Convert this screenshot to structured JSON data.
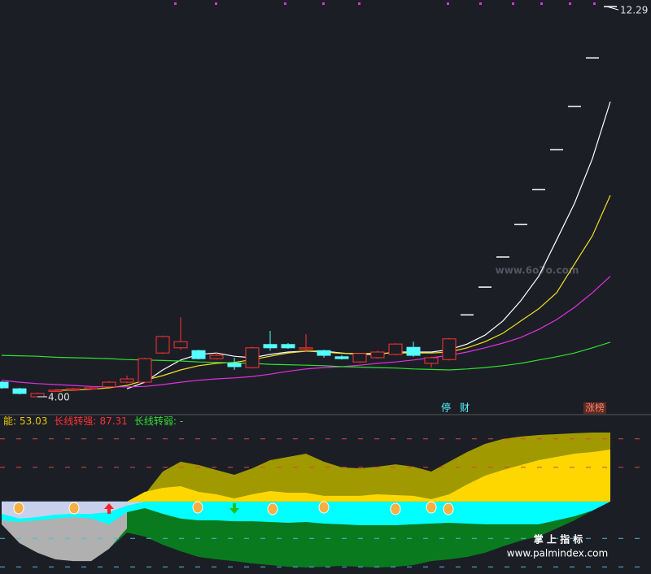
{
  "chart_data": [
    {
      "type": "candlestick",
      "ylim": [
        3.62,
        12.43
      ],
      "open": [
        4.31,
        4.17,
        4.0,
        4.12,
        4.15,
        4.17,
        4.21,
        4.31,
        4.31,
        4.93,
        5.04,
        4.98,
        4.81,
        4.71,
        4.62,
        5.11,
        5.11,
        5.02,
        4.98,
        4.85,
        4.74,
        4.83,
        4.9,
        5.05,
        4.71,
        4.79,
        5.74,
        6.33,
        6.97,
        7.66,
        8.4,
        9.25,
        10.17,
        11.2,
        12.29
      ],
      "close": [
        4.19,
        4.07,
        4.07,
        4.14,
        4.17,
        4.19,
        4.31,
        4.38,
        4.81,
        5.28,
        5.17,
        4.81,
        4.88,
        4.64,
        5.04,
        5.04,
        5.04,
        5.04,
        4.88,
        4.81,
        4.92,
        4.95,
        5.12,
        4.88,
        4.83,
        5.23,
        5.74,
        6.33,
        6.97,
        7.66,
        8.4,
        9.25,
        10.17,
        11.2,
        12.29
      ],
      "high": [
        4.33,
        4.19,
        4.09,
        4.16,
        4.19,
        4.21,
        4.33,
        4.45,
        4.83,
        5.3,
        5.69,
        5.0,
        4.95,
        4.83,
        5.06,
        5.4,
        5.14,
        5.33,
        5.0,
        4.88,
        4.93,
        4.98,
        5.14,
        5.17,
        4.85,
        5.25,
        5.74,
        6.33,
        6.97,
        7.66,
        8.4,
        9.25,
        10.17,
        11.2,
        12.29
      ],
      "low": [
        4.17,
        4.05,
        4.0,
        4.1,
        4.13,
        4.15,
        4.19,
        4.29,
        4.29,
        4.91,
        5.0,
        4.79,
        4.79,
        4.57,
        4.6,
        4.98,
        5.02,
        4.95,
        4.83,
        4.79,
        4.72,
        4.81,
        4.88,
        4.85,
        4.62,
        4.77,
        5.74,
        6.33,
        6.97,
        7.66,
        8.4,
        9.25,
        10.17,
        11.2,
        12.29
      ],
      "up_color": "#ff3232",
      "down_color": "#54ffff",
      "flat_color": "#ffffff",
      "lines": [
        {
          "color": "#ffffff",
          "values": [
            null,
            null,
            null,
            null,
            null,
            null,
            null,
            4.17,
            4.31,
            4.57,
            4.78,
            4.9,
            4.93,
            4.86,
            4.83,
            4.9,
            4.95,
            4.97,
            4.97,
            4.93,
            4.9,
            4.9,
            4.95,
            4.95,
            4.95,
            5.0,
            5.12,
            5.31,
            5.61,
            6.04,
            6.56,
            7.33,
            8.11,
            9.06,
            10.27
          ]
        },
        {
          "color": "#f0e020",
          "values": [
            null,
            null,
            null,
            4.14,
            4.14,
            4.16,
            4.19,
            4.24,
            4.35,
            4.45,
            4.57,
            4.66,
            4.71,
            4.73,
            4.79,
            4.86,
            4.93,
            4.97,
            4.95,
            4.92,
            4.92,
            4.92,
            4.93,
            4.93,
            4.93,
            4.95,
            5.04,
            5.17,
            5.35,
            5.61,
            5.87,
            6.21,
            6.82,
            7.42,
            8.28
          ]
        },
        {
          "color": "#e030e0",
          "values": [
            4.35,
            4.31,
            4.28,
            4.26,
            4.24,
            4.22,
            4.21,
            4.21,
            4.22,
            4.26,
            4.31,
            4.35,
            4.38,
            4.4,
            4.43,
            4.48,
            4.54,
            4.59,
            4.62,
            4.64,
            4.67,
            4.71,
            4.74,
            4.78,
            4.83,
            4.88,
            4.95,
            5.04,
            5.14,
            5.26,
            5.43,
            5.64,
            5.9,
            6.21,
            6.56
          ]
        },
        {
          "color": "#30e030",
          "values": [
            4.88,
            4.87,
            4.86,
            4.84,
            4.83,
            4.82,
            4.81,
            4.79,
            4.78,
            4.77,
            4.76,
            4.74,
            4.73,
            4.72,
            4.71,
            4.69,
            4.68,
            4.67,
            4.66,
            4.64,
            4.63,
            4.62,
            4.61,
            4.59,
            4.58,
            4.57,
            4.59,
            4.62,
            4.66,
            4.71,
            4.78,
            4.85,
            4.93,
            5.04,
            5.16
          ]
        }
      ],
      "max_label": 12.29,
      "min_label": {
        "value": 4,
        "label": "4.00"
      },
      "signals": [
        {
          "text": "停",
          "color": "#54ffff"
        },
        {
          "text": "财",
          "color": "#54ffff"
        },
        {
          "text": "涨榜",
          "color": "#ff8070"
        }
      ],
      "watermark": "www.6o7o.com"
    },
    {
      "type": "area",
      "ylim": [
        -5,
        107
      ],
      "midline": 45.9,
      "levels": [
        {
          "value": 90,
          "color": "#e04040"
        },
        {
          "value": 70,
          "color": "#e04040"
        },
        {
          "value": 20,
          "color": "#40c0e0"
        },
        {
          "value": 0,
          "color": "#40c0e0"
        }
      ],
      "header": [
        {
          "label": "能:",
          "value": 53.03,
          "color": "#e8c800"
        },
        {
          "label": "长线转强:",
          "value": 87.31,
          "color": "#ff3030"
        },
        {
          "label": "长线转弱:",
          "value": "-",
          "color": "#30e030"
        }
      ],
      "series": [
        {
          "color": "#0a7a1e",
          "values": [
            null,
            null,
            null,
            null,
            null,
            4.1,
            12.7,
            24.1,
            21.3,
            15.6,
            11.0,
            7.0,
            5.3,
            4.1,
            2.4,
            1.3,
            0.1,
            -0.4,
            0.1,
            0.7,
            0.1,
            -0.4,
            0.1,
            1.3,
            4.1,
            5.3,
            7.0,
            9.9,
            14.4,
            18.4,
            21.3,
            27.0,
            32.7,
            39.6,
            45.9
          ]
        },
        {
          "color": "#b0b0b0",
          "values": [
            29.9,
            16.7,
            9.9,
            5.3,
            4.1,
            4.1,
            12.7,
            27.0,
            null,
            null,
            null,
            null,
            null,
            null,
            null,
            null,
            null,
            null,
            null,
            null,
            null,
            null,
            null,
            null,
            null,
            null,
            null,
            null,
            null,
            null,
            null,
            null,
            null,
            null,
            null
          ]
        },
        {
          "color": "#00ffff",
          "values": [
            32.7,
            31.6,
            32.7,
            33.9,
            35.0,
            33.9,
            29.9,
            38.4,
            41.3,
            37.3,
            33.9,
            32.7,
            32.7,
            32.1,
            32.1,
            31.6,
            31.0,
            31.6,
            30.4,
            29.9,
            29.3,
            29.3,
            29.3,
            29.9,
            30.4,
            31.0,
            30.4,
            29.9,
            29.9,
            29.9,
            29.9,
            32.7,
            35.6,
            39.6,
            45.9
          ]
        },
        {
          "color": "#c8d0ec",
          "values": [
            37.3,
            33.9,
            35.0,
            36.7,
            37.3,
            37.3,
            38.4,
            43.0,
            45.9,
            null,
            null,
            null,
            null,
            null,
            null,
            null,
            null,
            null,
            null,
            null,
            null,
            null,
            null,
            null,
            null,
            null,
            null,
            null,
            null,
            null,
            null,
            null,
            null,
            null,
            null
          ]
        },
        {
          "color": "#a09a00",
          "values": [
            null,
            null,
            null,
            null,
            null,
            null,
            null,
            45.9,
            51.0,
            67.0,
            73.9,
            71.6,
            68.1,
            64.7,
            69.3,
            75.0,
            77.3,
            79.6,
            73.9,
            69.9,
            69.3,
            70.4,
            72.1,
            70.4,
            67.0,
            73.9,
            80.7,
            86.4,
            89.9,
            91.6,
            92.7,
            93.3,
            93.9,
            94.4,
            94.4
          ]
        },
        {
          "color": "#ffd700",
          "values": [
            null,
            null,
            null,
            null,
            null,
            null,
            null,
            45.9,
            52.7,
            55.6,
            56.7,
            52.7,
            51.0,
            48.1,
            51.0,
            53.3,
            52.1,
            52.1,
            49.9,
            49.9,
            49.9,
            51.0,
            50.4,
            49.9,
            47.6,
            51.0,
            57.9,
            64.1,
            68.1,
            71.6,
            75.0,
            77.3,
            79.6,
            80.7,
            82.4
          ]
        }
      ],
      "watermark": [
        "掌 上 指 标",
        "www.palmindex.com"
      ]
    }
  ]
}
